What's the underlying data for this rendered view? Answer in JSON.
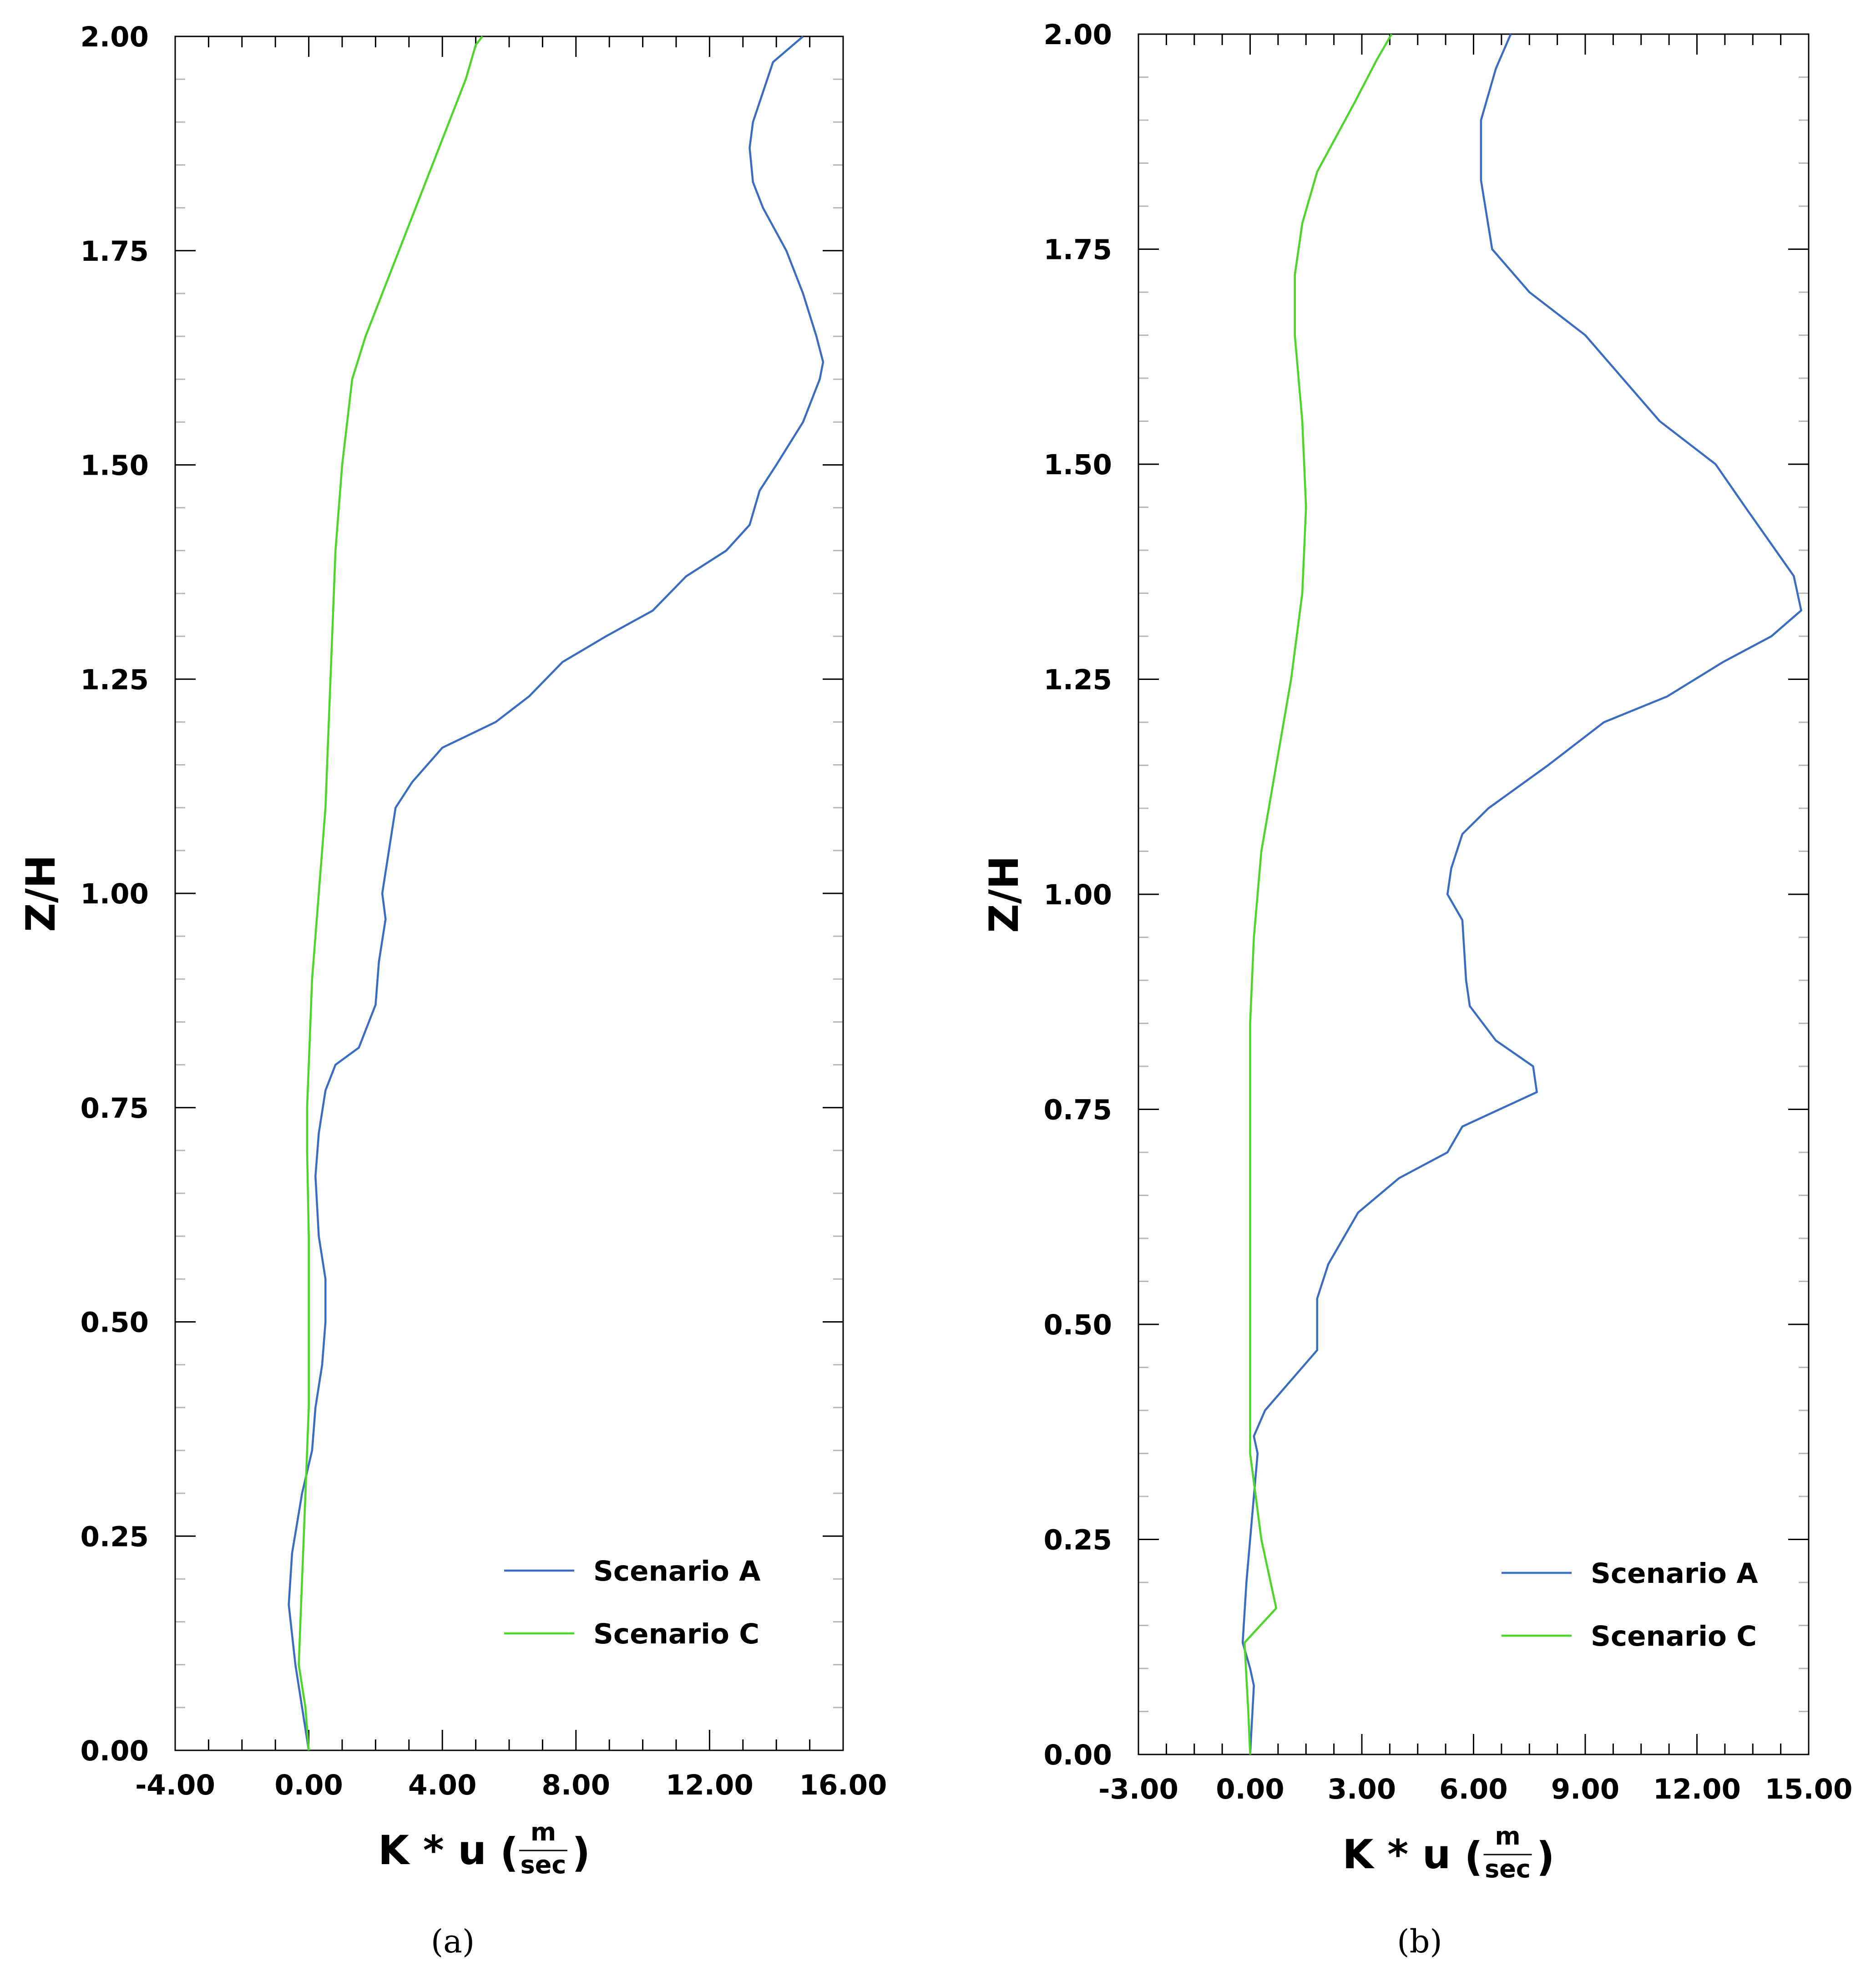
{
  "chart_data": [
    {
      "type": "line",
      "panel_label": "(a)",
      "xlabel": "K * u",
      "xunit_num": "m",
      "xunit_den": "sec",
      "ylabel": "Z/H",
      "xlim": [
        -4,
        16
      ],
      "ylim": [
        0,
        2
      ],
      "xticks": [
        -4,
        0,
        4,
        8,
        12,
        16
      ],
      "xtick_labels": [
        "-4.00",
        "0.00",
        "4.00",
        "8.00",
        "12.00",
        "16.00"
      ],
      "yticks": [
        0,
        0.25,
        0.5,
        0.75,
        1.0,
        1.25,
        1.5,
        1.75,
        2.0
      ],
      "ytick_labels": [
        "0.00",
        "0.25",
        "0.50",
        "0.75",
        "1.00",
        "1.25",
        "1.50",
        "1.75",
        "2.00"
      ],
      "legend": "bottom-right",
      "series": [
        {
          "name": "Scenario A",
          "color": "#3a6cc2",
          "x": [
            0.0,
            -0.2,
            -0.4,
            -0.6,
            -0.5,
            -0.2,
            0.1,
            0.2,
            0.4,
            0.5,
            0.5,
            0.3,
            0.2,
            0.3,
            0.5,
            0.8,
            1.5,
            2.0,
            2.1,
            2.3,
            2.2,
            2.6,
            3.1,
            4.0,
            5.6,
            6.6,
            7.6,
            8.9,
            10.3,
            11.3,
            12.5,
            13.2,
            13.5,
            14.0,
            14.8,
            15.3,
            15.4,
            15.2,
            14.8,
            14.3,
            13.6,
            13.3,
            13.2,
            13.3,
            13.9,
            14.5,
            14.8
          ],
          "y": [
            0.0,
            0.05,
            0.1,
            0.17,
            0.23,
            0.3,
            0.35,
            0.4,
            0.45,
            0.5,
            0.55,
            0.6,
            0.67,
            0.72,
            0.77,
            0.8,
            0.82,
            0.87,
            0.92,
            0.97,
            1.0,
            1.1,
            1.13,
            1.17,
            1.2,
            1.23,
            1.27,
            1.3,
            1.33,
            1.37,
            1.4,
            1.43,
            1.47,
            1.5,
            1.55,
            1.6,
            1.62,
            1.65,
            1.7,
            1.75,
            1.8,
            1.83,
            1.87,
            1.9,
            1.97,
            1.99,
            2.0
          ]
        },
        {
          "name": "Scenario C",
          "color": "#4cd629",
          "x": [
            0.0,
            -0.1,
            -0.3,
            -0.2,
            -0.1,
            0.0,
            0.0,
            0.0,
            -0.05,
            -0.05,
            0.0,
            0.1,
            0.3,
            0.5,
            0.6,
            0.7,
            0.8,
            1.0,
            1.3,
            1.7,
            2.2,
            2.7,
            3.2,
            3.7,
            4.2,
            4.7,
            5.0,
            5.2
          ],
          "y": [
            0.0,
            0.05,
            0.1,
            0.2,
            0.3,
            0.4,
            0.5,
            0.6,
            0.7,
            0.75,
            0.8,
            0.9,
            1.0,
            1.1,
            1.2,
            1.3,
            1.4,
            1.5,
            1.6,
            1.65,
            1.7,
            1.75,
            1.8,
            1.85,
            1.9,
            1.95,
            1.99,
            2.0
          ]
        }
      ]
    },
    {
      "type": "line",
      "panel_label": "(b)",
      "xlabel": "K * u",
      "xunit_num": "m",
      "xunit_den": "sec",
      "ylabel": "Z/H",
      "xlim": [
        -3,
        15
      ],
      "ylim": [
        0,
        2
      ],
      "xticks": [
        -3,
        0,
        3,
        6,
        9,
        12,
        15
      ],
      "xtick_labels": [
        "-3.00",
        "0.00",
        "3.00",
        "6.00",
        "9.00",
        "12.00",
        "15.00"
      ],
      "yticks": [
        0,
        0.25,
        0.5,
        0.75,
        1.0,
        1.25,
        1.5,
        1.75,
        2.0
      ],
      "ytick_labels": [
        "0.00",
        "0.25",
        "0.50",
        "0.75",
        "1.00",
        "1.25",
        "1.50",
        "1.75",
        "2.00"
      ],
      "legend": "bottom-right",
      "series": [
        {
          "name": "Scenario A",
          "color": "#3a6cc2",
          "x": [
            0.0,
            0.1,
            0.0,
            -0.2,
            -0.1,
            0.1,
            0.2,
            0.1,
            0.4,
            1.0,
            1.8,
            1.8,
            2.1,
            2.9,
            4.0,
            5.3,
            5.7,
            7.7,
            7.6,
            6.6,
            5.9,
            5.8,
            5.7,
            5.3,
            5.4,
            5.7,
            6.4,
            8.0,
            9.5,
            11.2,
            12.7,
            14.0,
            14.8,
            14.6,
            13.3,
            12.5,
            11.0,
            10.0,
            9.0,
            7.5,
            6.5,
            6.2,
            6.2,
            6.6,
            7.0
          ],
          "y": [
            0.0,
            0.08,
            0.1,
            0.13,
            0.2,
            0.3,
            0.35,
            0.37,
            0.4,
            0.43,
            0.47,
            0.53,
            0.57,
            0.63,
            0.67,
            0.7,
            0.73,
            0.77,
            0.8,
            0.83,
            0.87,
            0.9,
            0.97,
            1.0,
            1.03,
            1.07,
            1.1,
            1.15,
            1.2,
            1.23,
            1.27,
            1.3,
            1.33,
            1.37,
            1.45,
            1.5,
            1.55,
            1.6,
            1.65,
            1.7,
            1.75,
            1.83,
            1.9,
            1.96,
            2.0
          ]
        },
        {
          "name": "Scenario C",
          "color": "#4cd629",
          "x": [
            0.0,
            -0.05,
            -0.15,
            0.7,
            0.3,
            0.0,
            0.0,
            0.0,
            0.0,
            0.0,
            0.0,
            0.1,
            0.3,
            0.7,
            1.1,
            1.4,
            1.5,
            1.4,
            1.2,
            1.2,
            1.4,
            1.8,
            2.3,
            2.8,
            3.4,
            3.8
          ],
          "y": [
            0.0,
            0.05,
            0.13,
            0.17,
            0.25,
            0.35,
            0.45,
            0.55,
            0.65,
            0.75,
            0.85,
            0.95,
            1.05,
            1.15,
            1.25,
            1.35,
            1.45,
            1.55,
            1.65,
            1.72,
            1.78,
            1.84,
            1.88,
            1.92,
            1.97,
            2.0
          ]
        }
      ]
    }
  ]
}
